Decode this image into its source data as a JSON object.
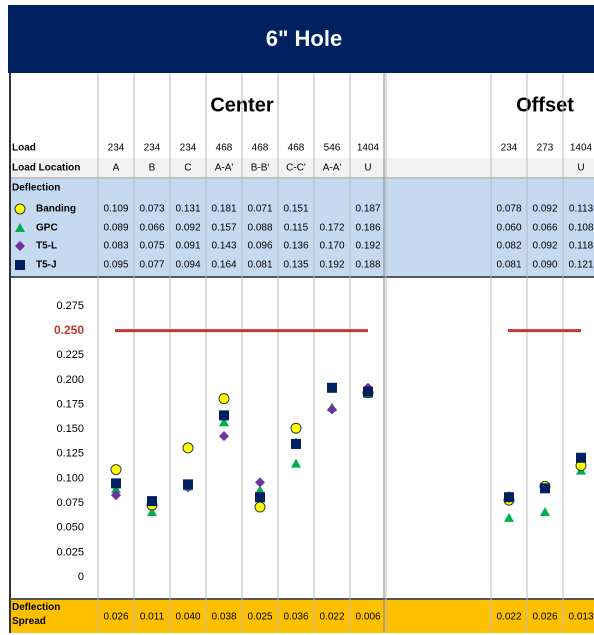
{
  "header": {
    "title": "6\" Hole"
  },
  "chart_data": {
    "type": "scatter",
    "row_labels": {
      "load": "Load",
      "location": "Load Location",
      "deflection": "Deflection",
      "spread": "Deflection Spread"
    },
    "legend": [
      {
        "name": "Banding",
        "color": "#ffff00",
        "marker": "circle"
      },
      {
        "name": "GPC",
        "color": "#00b050",
        "marker": "triangle"
      },
      {
        "name": "T5-L",
        "color": "#7030a0",
        "marker": "diamond"
      },
      {
        "name": "T5-J",
        "color": "#002060",
        "marker": "square"
      }
    ],
    "ylim": [
      0,
      0.275
    ],
    "yticks": [
      0,
      {
        "value": 0.025,
        "label": "0.025"
      },
      {
        "value": 0.05,
        "label": "0.050"
      },
      {
        "value": 0.075,
        "label": "0.075"
      },
      {
        "value": 0.1,
        "label": "0.100"
      },
      {
        "value": 0.125,
        "label": "0.125"
      },
      {
        "value": 0.15,
        "label": "0.150"
      },
      {
        "value": 0.175,
        "label": "0.175"
      },
      {
        "value": 0.2,
        "label": "0.200"
      },
      {
        "value": 0.225,
        "label": "0.225"
      },
      {
        "value": 0.25,
        "label": "0.250"
      },
      {
        "value": 0.275,
        "label": "0.275"
      }
    ],
    "limit": 0.25,
    "limit_color": "#c0392b",
    "groups": [
      {
        "title": "Center",
        "loads": [
          234,
          234,
          234,
          468,
          468,
          468,
          546,
          1404
        ],
        "locations": [
          "A",
          "B",
          "C",
          "A-A'",
          "B-B'",
          "C-C'",
          "A-A'",
          "U"
        ],
        "values": [
          [
            0.109,
            0.073,
            0.131,
            0.181,
            0.071,
            0.151,
            null,
            0.187
          ],
          [
            0.089,
            0.066,
            0.092,
            0.157,
            0.088,
            0.115,
            0.172,
            0.186
          ],
          [
            0.083,
            0.075,
            0.091,
            0.143,
            0.096,
            0.136,
            0.17,
            0.192
          ],
          [
            0.095,
            0.077,
            0.094,
            0.164,
            0.081,
            0.135,
            0.192,
            0.188
          ]
        ],
        "value_labels": [
          [
            "0.109",
            "0.073",
            "0.131",
            "0.181",
            "0.071",
            "0.151",
            null,
            "0.187"
          ],
          [
            "0.089",
            "0.066",
            "0.092",
            "0.157",
            "0.088",
            "0.115",
            "0.172",
            "0.186"
          ],
          [
            "0.083",
            "0.075",
            "0.091",
            "0.143",
            "0.096",
            "0.136",
            "0.170",
            "0.192"
          ],
          [
            "0.095",
            "0.077",
            "0.094",
            "0.164",
            "0.081",
            "0.135",
            "0.192",
            "0.188"
          ]
        ],
        "spread": [
          0.026,
          0.011,
          0.04,
          0.038,
          0.025,
          0.036,
          0.022,
          0.006
        ],
        "spread_labels": [
          "0.026",
          "0.011",
          "0.040",
          "0.038",
          "0.025",
          "0.036",
          "0.022",
          "0.006"
        ]
      },
      {
        "title": "Offset",
        "loads": [
          234,
          273,
          1404
        ],
        "locations": [
          null,
          null,
          "U"
        ],
        "values": [
          [
            0.078,
            0.092,
            0.113
          ],
          [
            0.06,
            0.066,
            0.108
          ],
          [
            0.082,
            0.092,
            0.118
          ],
          [
            0.081,
            0.09,
            0.121
          ]
        ],
        "value_labels": [
          [
            "0.078",
            "0.092",
            "0.113"
          ],
          [
            "0.060",
            "0.066",
            "0.108"
          ],
          [
            "0.082",
            "0.092",
            "0.118"
          ],
          [
            "0.081",
            "0.090",
            "0.121"
          ]
        ],
        "spread": [
          0.022,
          0.026,
          0.013
        ],
        "spread_labels": [
          "0.022",
          "0.026",
          "0.013"
        ]
      }
    ]
  }
}
